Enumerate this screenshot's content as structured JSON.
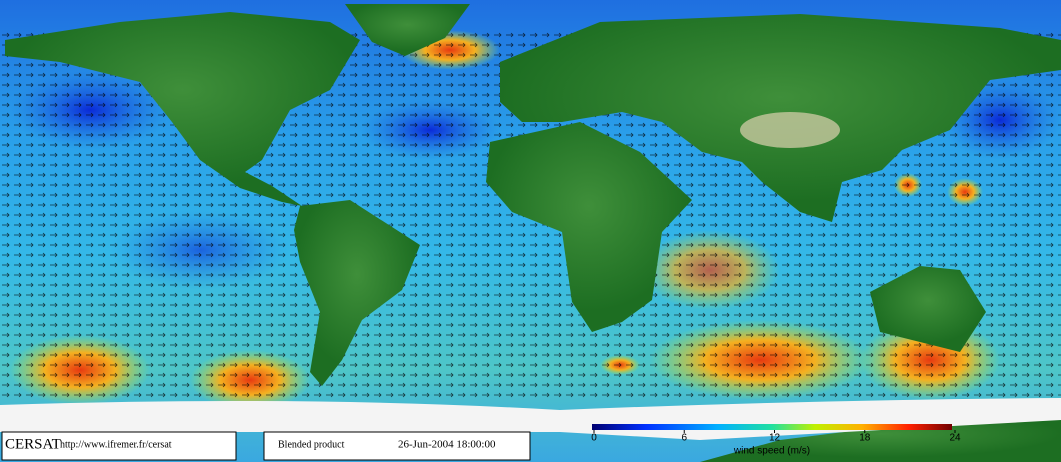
{
  "footer": {
    "logo": "CERSAT",
    "url": "http://www.ifremer.fr/cersat",
    "product": "Blended product",
    "date": "26-Jun-2004 18:00:00"
  },
  "colorbar": {
    "lim": [
      0,
      24
    ],
    "ticks": [
      0,
      6,
      12,
      18,
      24
    ],
    "label": "wind speed (m/s)"
  }
}
